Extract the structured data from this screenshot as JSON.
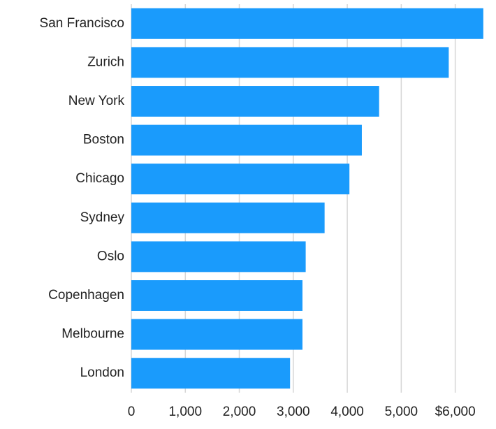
{
  "chart_data": {
    "type": "bar",
    "orientation": "horizontal",
    "categories": [
      "San Francisco",
      "Zurich",
      "New York",
      "Boston",
      "Chicago",
      "Sydney",
      "Oslo",
      "Copenhagen",
      "Melbourne",
      "London"
    ],
    "values": [
      6520,
      5880,
      4590,
      4270,
      4040,
      3580,
      3230,
      3170,
      3170,
      2940
    ],
    "color": "#1a9bfc",
    "xlim": [
      0,
      6600
    ],
    "xticks": [
      0,
      {
        "value": 1000,
        "label": "1,000"
      },
      {
        "value": 2000,
        "label": "2,000"
      },
      {
        "value": 3000,
        "label": "3,000"
      },
      {
        "value": 4000,
        "label": "4,000"
      },
      {
        "value": 5000,
        "label": "5,000"
      },
      {
        "value": 6000,
        "label": "$6,000"
      }
    ],
    "grid": true
  }
}
